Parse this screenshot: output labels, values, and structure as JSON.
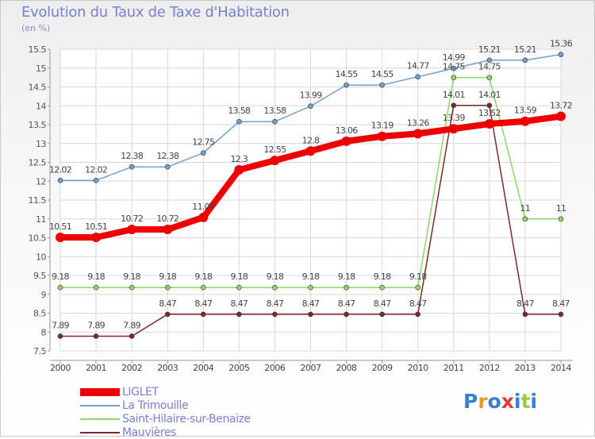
{
  "header": {
    "title": "Evolution du Taux de Taxe d'Habitation",
    "unit": "(en %)"
  },
  "logo": {
    "text": "Proxiti",
    "colors": [
      "#3a7fd0",
      "#e89a2c",
      "#3a7fd0",
      "#e23a3a",
      "#3a7fd0",
      "#9acd32",
      "#3a7fd0"
    ]
  },
  "chart_data": {
    "type": "line",
    "x": [
      2000,
      2001,
      2002,
      2003,
      2004,
      2005,
      2006,
      2007,
      2008,
      2009,
      2010,
      2011,
      2012,
      2013,
      2014
    ],
    "ylim": [
      7.5,
      15.5
    ],
    "yticks": [
      "7.5",
      "8",
      "8.5",
      "9",
      "9.5",
      "10",
      "10.5",
      "11",
      "11.5",
      "12",
      "12.5",
      "13",
      "13.5",
      "14",
      "14.5",
      "15",
      "15.5"
    ],
    "grid": true,
    "legend_position": "bottom-left",
    "series": [
      {
        "name": "LIGLET",
        "color": "#ee0000",
        "values": [
          10.51,
          10.51,
          10.72,
          10.72,
          11.04,
          12.3,
          12.55,
          12.8,
          13.06,
          13.19,
          13.26,
          13.39,
          13.52,
          13.59,
          13.72
        ],
        "labels": [
          "10.51",
          "10.51",
          "10.72",
          "10.72",
          "11.04",
          "12.3",
          "12.55",
          "12.8",
          "13.06",
          "13.19",
          "13.26",
          "13.39",
          "13.52",
          "13.59",
          "13.72"
        ]
      },
      {
        "name": "La Trimouille",
        "color": "#6fa0cf",
        "values": [
          12.02,
          12.02,
          12.38,
          12.38,
          12.75,
          13.58,
          13.58,
          13.99,
          14.55,
          14.55,
          14.77,
          14.99,
          15.21,
          15.21,
          15.36
        ],
        "labels": [
          "12.02",
          "12.02",
          "12.38",
          "12.38",
          "12.75",
          "13.58",
          "13.58",
          "13.99",
          "14.55",
          "14.55",
          "14.77",
          "14.99",
          "15.21",
          "15.21",
          "15.36"
        ]
      },
      {
        "name": "Saint-Hilaire-sur-Benaize",
        "color": "#8fd66a",
        "values": [
          9.18,
          9.18,
          9.18,
          9.18,
          9.18,
          9.18,
          9.18,
          9.18,
          9.18,
          9.18,
          9.18,
          14.75,
          14.75,
          11,
          11
        ],
        "labels": [
          "9.18",
          "9.18",
          "9.18",
          "9.18",
          "9.18",
          "9.18",
          "9.18",
          "9.18",
          "9.18",
          "9.18",
          "9.18",
          "14.75",
          "14.75",
          "11",
          "11"
        ]
      },
      {
        "name": "Mauvières",
        "color": "#7a2a2a",
        "values": [
          7.89,
          7.89,
          7.89,
          8.47,
          8.47,
          8.47,
          8.47,
          8.47,
          8.47,
          8.47,
          8.47,
          14.01,
          14.01,
          8.47,
          8.47
        ],
        "labels": [
          "7.89",
          "7.89",
          "7.89",
          "8.47",
          "8.47",
          "8.47",
          "8.47",
          "8.47",
          "8.47",
          "8.47",
          "8.47",
          "14.01",
          "14.01",
          "8.47",
          "8.47"
        ]
      }
    ]
  }
}
